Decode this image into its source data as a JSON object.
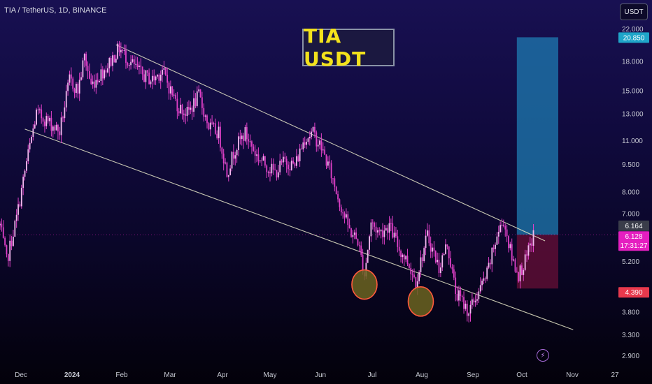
{
  "header": {
    "symbol_line": "TIA / TetherUS, 1D, BINANCE",
    "currency_button": "USDT",
    "banner": "TIA USDT"
  },
  "colors": {
    "candle": "#e040c8",
    "candle_body": "#f2b8ee",
    "trendline": "#e6e6c8",
    "target_zone": "#1f7fb5",
    "stop_zone": "#6d1038",
    "marker_fill": "#6b6420",
    "marker_stroke": "#ff5a3c",
    "price_tag_current": "#e51ec0",
    "price_tag_stop": "#e8394d",
    "price_tag_target": "#1fa5c9"
  },
  "chart_data": {
    "type": "candlestick",
    "scale": "log",
    "y_ticks": [
      "22.000",
      "18.000",
      "15.000",
      "13.000",
      "11.000",
      "9.500",
      "8.000",
      "7.000",
      "5.200",
      "3.800",
      "3.300",
      "2.900"
    ],
    "x_ticks": [
      "Dec",
      "2024",
      "Feb",
      "Mar",
      "Apr",
      "May",
      "Jun",
      "Jul",
      "Aug",
      "Sep",
      "Oct",
      "Nov",
      "27"
    ],
    "price_tags": {
      "target": "20.850",
      "last": "6.164",
      "current": "6.128",
      "countdown": "17:31:27",
      "stop": "4.390"
    },
    "path_points": [
      {
        "date": "2023-11-28",
        "price": 6.5
      },
      {
        "date": "2023-12-02",
        "price": 5.2
      },
      {
        "date": "2023-12-08",
        "price": 6.8
      },
      {
        "date": "2023-12-14",
        "price": 9.6
      },
      {
        "date": "2023-12-20",
        "price": 13.0
      },
      {
        "date": "2023-12-26",
        "price": 12.5
      },
      {
        "date": "2024-01-03",
        "price": 11.6
      },
      {
        "date": "2024-01-09",
        "price": 16.0
      },
      {
        "date": "2024-01-14",
        "price": 15.0
      },
      {
        "date": "2024-01-18",
        "price": 18.5
      },
      {
        "date": "2024-01-22",
        "price": 15.5
      },
      {
        "date": "2024-01-27",
        "price": 16.5
      },
      {
        "date": "2024-02-01",
        "price": 17.5
      },
      {
        "date": "2024-02-08",
        "price": 19.5
      },
      {
        "date": "2024-02-14",
        "price": 18.0
      },
      {
        "date": "2024-02-22",
        "price": 16.5
      },
      {
        "date": "2024-02-28",
        "price": 16.0
      },
      {
        "date": "2024-03-05",
        "price": 17.0
      },
      {
        "date": "2024-03-10",
        "price": 15.0
      },
      {
        "date": "2024-03-15",
        "price": 13.5
      },
      {
        "date": "2024-03-20",
        "price": 13.0
      },
      {
        "date": "2024-03-27",
        "price": 14.5
      },
      {
        "date": "2024-04-02",
        "price": 12.0
      },
      {
        "date": "2024-04-08",
        "price": 11.5
      },
      {
        "date": "2024-04-13",
        "price": 9.0
      },
      {
        "date": "2024-04-18",
        "price": 10.5
      },
      {
        "date": "2024-04-24",
        "price": 11.5
      },
      {
        "date": "2024-05-01",
        "price": 10.0
      },
      {
        "date": "2024-05-06",
        "price": 9.5
      },
      {
        "date": "2024-05-12",
        "price": 9.0
      },
      {
        "date": "2024-05-18",
        "price": 9.7
      },
      {
        "date": "2024-05-24",
        "price": 9.4
      },
      {
        "date": "2024-05-30",
        "price": 11.2
      },
      {
        "date": "2024-06-04",
        "price": 11.5
      },
      {
        "date": "2024-06-09",
        "price": 10.5
      },
      {
        "date": "2024-06-14",
        "price": 9.2
      },
      {
        "date": "2024-06-20",
        "price": 7.5
      },
      {
        "date": "2024-06-26",
        "price": 6.3
      },
      {
        "date": "2024-07-01",
        "price": 5.9
      },
      {
        "date": "2024-07-05",
        "price": 4.8
      },
      {
        "date": "2024-07-09",
        "price": 6.6
      },
      {
        "date": "2024-07-14",
        "price": 6.2
      },
      {
        "date": "2024-07-20",
        "price": 6.5
      },
      {
        "date": "2024-07-26",
        "price": 5.6
      },
      {
        "date": "2024-07-31",
        "price": 5.2
      },
      {
        "date": "2024-08-05",
        "price": 4.6
      },
      {
        "date": "2024-08-12",
        "price": 6.1
      },
      {
        "date": "2024-08-19",
        "price": 5.0
      },
      {
        "date": "2024-08-24",
        "price": 5.8
      },
      {
        "date": "2024-08-29",
        "price": 4.3
      },
      {
        "date": "2024-09-06",
        "price": 3.8
      },
      {
        "date": "2024-09-12",
        "price": 4.3
      },
      {
        "date": "2024-09-17",
        "price": 4.8
      },
      {
        "date": "2024-09-23",
        "price": 6.1
      },
      {
        "date": "2024-09-27",
        "price": 6.7
      },
      {
        "date": "2024-10-02",
        "price": 5.3
      },
      {
        "date": "2024-10-06",
        "price": 4.8
      },
      {
        "date": "2024-10-11",
        "price": 5.3
      },
      {
        "date": "2024-10-15",
        "price": 6.13
      }
    ],
    "trendlines": [
      {
        "from": {
          "date": "2024-02-06",
          "price": 19.9
        },
        "to": {
          "date": "2024-10-22",
          "price": 5.9
        }
      },
      {
        "from": {
          "date": "2023-12-13",
          "price": 11.8
        },
        "to": {
          "date": "2024-11-08",
          "price": 3.4
        }
      }
    ],
    "position": {
      "start": "2024-10-05",
      "end": "2024-10-30",
      "entry": 6.128,
      "target": 20.85,
      "stop": 4.39
    },
    "markers": [
      {
        "date": "2024-07-05",
        "price": 4.5
      },
      {
        "date": "2024-08-08",
        "price": 4.05
      }
    ]
  }
}
